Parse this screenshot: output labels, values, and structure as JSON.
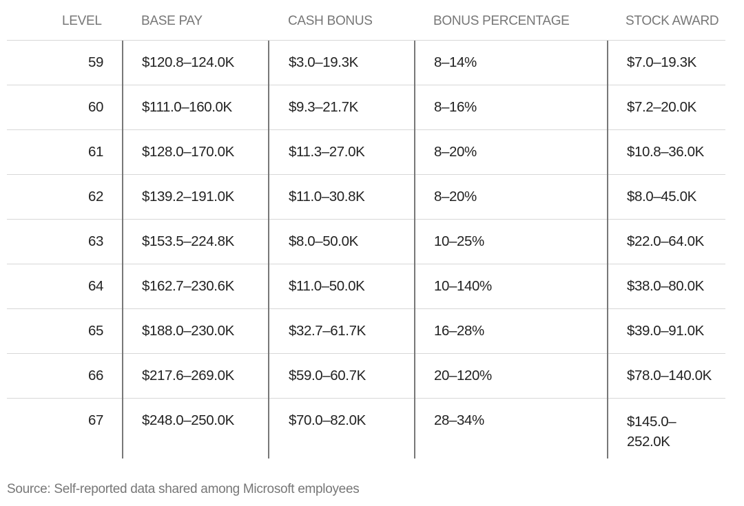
{
  "table": {
    "headers": {
      "level": "LEVEL",
      "base_pay": "BASE PAY",
      "cash_bonus": "CASH BONUS",
      "bonus_percentage": "BONUS PERCENTAGE",
      "stock_award": "STOCK AWARD"
    },
    "rows": [
      {
        "level": "59",
        "base_pay": "$120.8–124.0K",
        "cash_bonus": "$3.0–19.3K",
        "bonus_percentage": "8–14%",
        "stock_award": "$7.0–19.3K"
      },
      {
        "level": "60",
        "base_pay": "$111.0–160.0K",
        "cash_bonus": "$9.3–21.7K",
        "bonus_percentage": "8–16%",
        "stock_award": "$7.2–20.0K"
      },
      {
        "level": "61",
        "base_pay": "$128.0–170.0K",
        "cash_bonus": "$11.3–27.0K",
        "bonus_percentage": "8–20%",
        "stock_award": "$10.8–36.0K"
      },
      {
        "level": "62",
        "base_pay": "$139.2–191.0K",
        "cash_bonus": "$11.0–30.8K",
        "bonus_percentage": "8–20%",
        "stock_award": "$8.0–45.0K"
      },
      {
        "level": "63",
        "base_pay": "$153.5–224.8K",
        "cash_bonus": "$8.0–50.0K",
        "bonus_percentage": "10–25%",
        "stock_award": "$22.0–64.0K"
      },
      {
        "level": "64",
        "base_pay": "$162.7–230.6K",
        "cash_bonus": "$11.0–50.0K",
        "bonus_percentage": "10–140%",
        "stock_award": "$38.0–80.0K"
      },
      {
        "level": "65",
        "base_pay": "$188.0–230.0K",
        "cash_bonus": "$32.7–61.7K",
        "bonus_percentage": "16–28%",
        "stock_award": "$39.0–91.0K"
      },
      {
        "level": "66",
        "base_pay": "$217.6–269.0K",
        "cash_bonus": "$59.0–60.7K",
        "bonus_percentage": "20–120%",
        "stock_award": "$78.0–140.0K"
      },
      {
        "level": "67",
        "base_pay": "$248.0–250.0K",
        "cash_bonus": "$70.0–82.0K",
        "bonus_percentage": "28–34%",
        "stock_award": "$145.0–252.0K"
      }
    ]
  },
  "source": "Source: Self-reported data shared among Microsoft employees",
  "colors": {
    "text": "#222222",
    "header_text": "#777777",
    "row_divider": "#d7d7d7",
    "column_divider": "#777777"
  }
}
